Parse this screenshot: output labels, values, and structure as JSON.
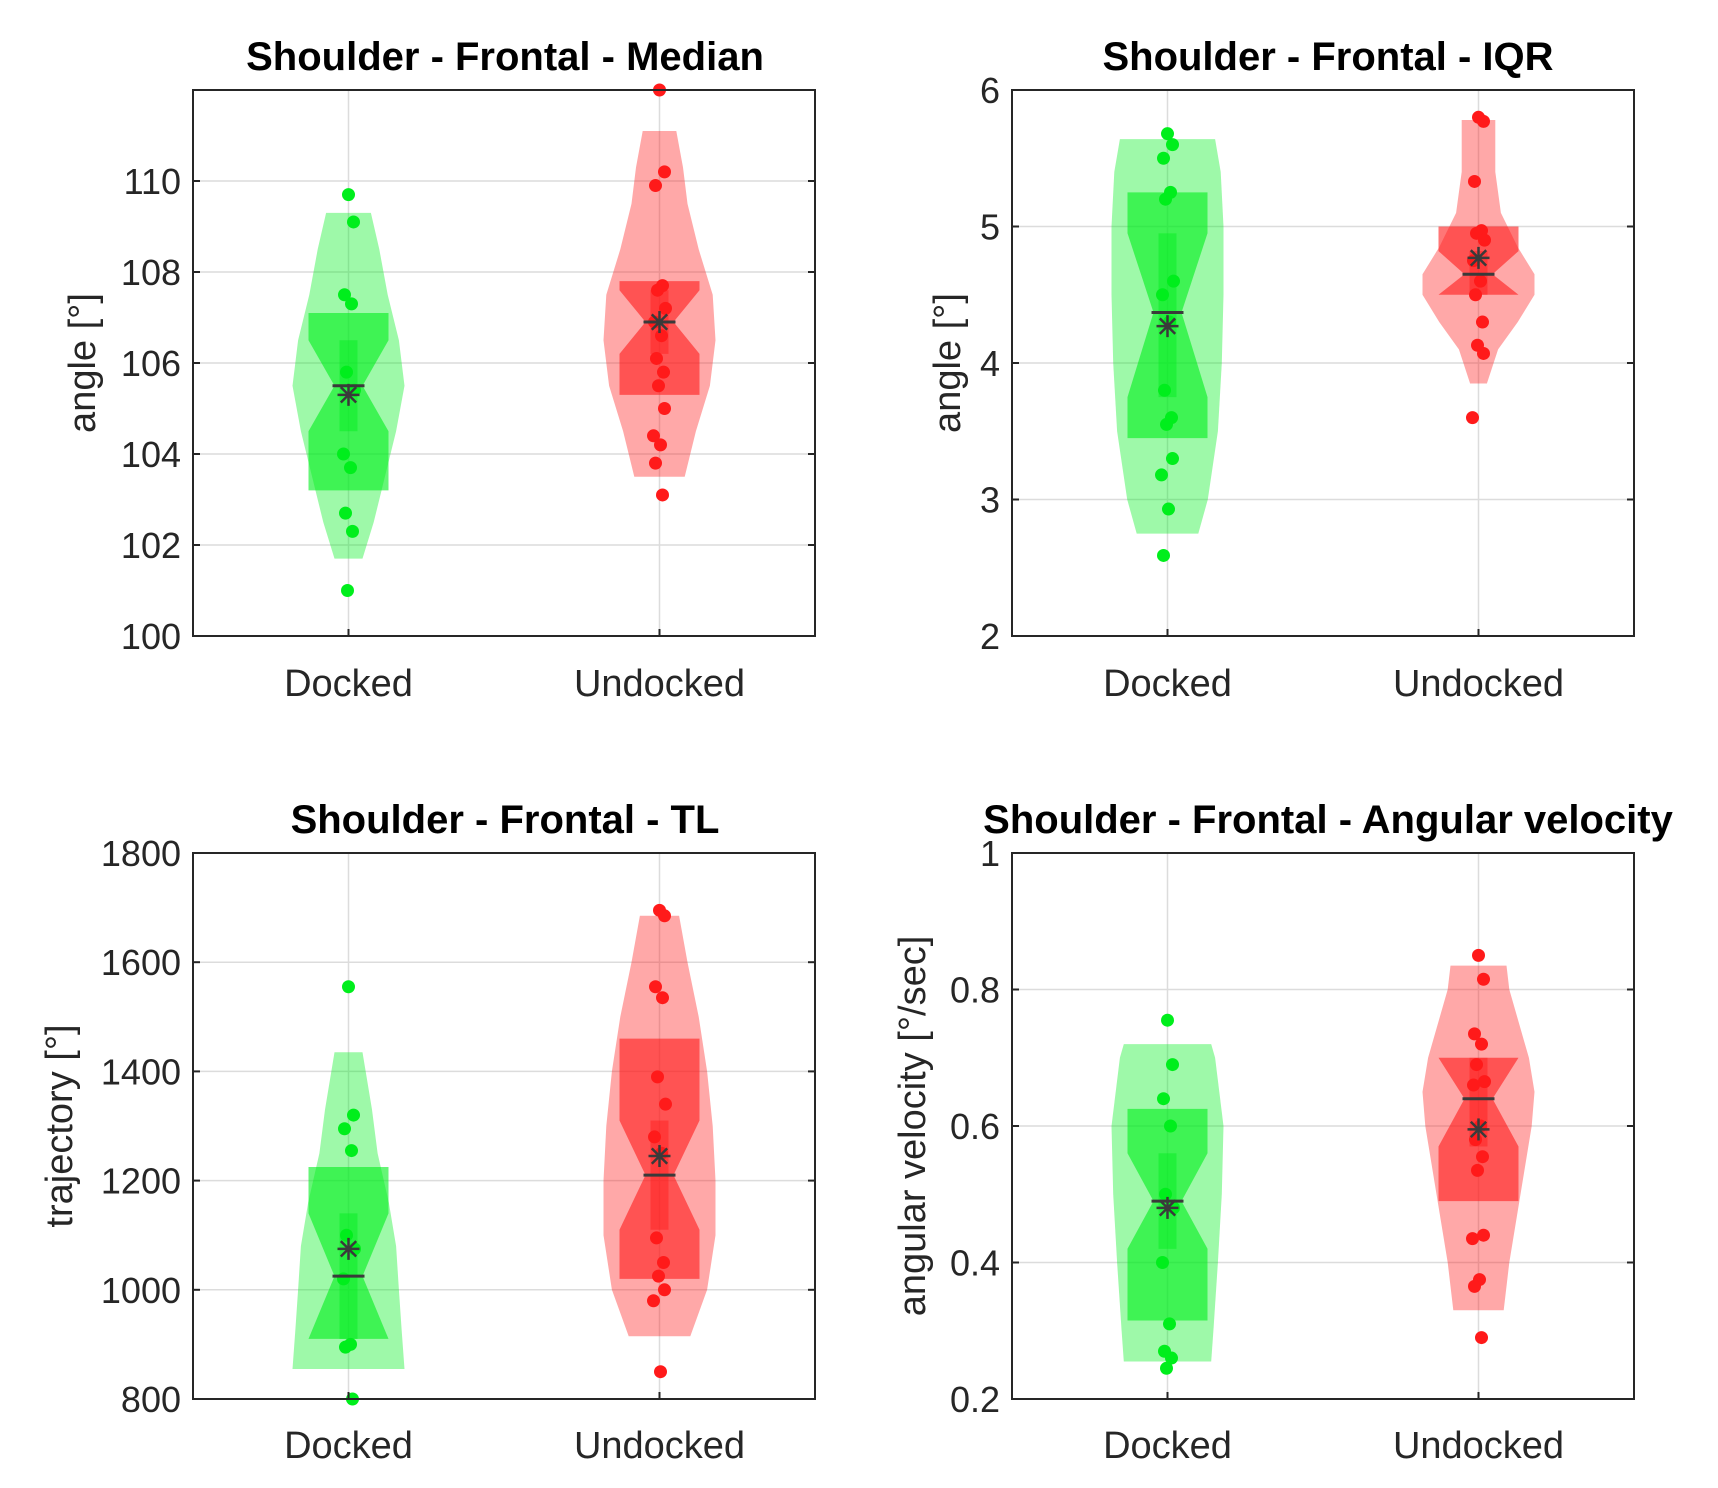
{
  "figure": {
    "colors": {
      "docked": "#00ee1c",
      "undocked": "#ff1a1a",
      "marker": "#3a3a3a"
    }
  },
  "chart_data": [
    {
      "type": "violin",
      "title": "Shoulder - Frontal - Median",
      "xlabel": "",
      "ylabel": "angle [°]",
      "ylim": [
        100,
        112
      ],
      "yticks": [
        100,
        102,
        104,
        106,
        108,
        110
      ],
      "ytick_labels": [
        "100",
        "102",
        "104",
        "106",
        "108",
        "110"
      ],
      "categories": [
        "Docked",
        "Undocked"
      ],
      "series": [
        {
          "name": "Docked",
          "points": [
            109.7,
            109.1,
            107.5,
            107.3,
            105.8,
            105.4,
            104.0,
            103.7,
            102.7,
            102.3,
            101.0
          ],
          "median": 105.5,
          "mean": 105.3,
          "q1": 103.2,
          "q3": 107.1,
          "notch_low": 104.5,
          "notch_high": 106.5,
          "violin": [
            [
              101.7,
              0.25
            ],
            [
              102.5,
              0.45
            ],
            [
              103.5,
              0.65
            ],
            [
              104.5,
              0.85
            ],
            [
              105.5,
              1.0
            ],
            [
              106.5,
              0.9
            ],
            [
              107.5,
              0.7
            ],
            [
              108.5,
              0.55
            ],
            [
              109.3,
              0.4
            ]
          ]
        },
        {
          "name": "Undocked",
          "points": [
            112.0,
            110.2,
            109.9,
            107.7,
            107.6,
            107.2,
            106.9,
            106.6,
            106.1,
            105.8,
            105.5,
            105.0,
            104.4,
            104.2,
            103.8,
            103.1
          ],
          "median": 106.9,
          "mean": 106.9,
          "q1": 105.3,
          "q3": 107.8,
          "notch_low": 106.2,
          "notch_high": 107.6,
          "violin": [
            [
              103.5,
              0.45
            ],
            [
              104.5,
              0.65
            ],
            [
              105.5,
              0.9
            ],
            [
              106.5,
              1.0
            ],
            [
              107.5,
              0.95
            ],
            [
              108.5,
              0.7
            ],
            [
              109.5,
              0.5
            ],
            [
              110.3,
              0.42
            ],
            [
              111.1,
              0.3
            ]
          ]
        }
      ]
    },
    {
      "type": "violin",
      "title": "Shoulder - Frontal - IQR",
      "xlabel": "",
      "ylabel": "angle [°]",
      "ylim": [
        2,
        6
      ],
      "yticks": [
        2,
        3,
        4,
        5,
        6
      ],
      "ytick_labels": [
        "2",
        "3",
        "4",
        "5",
        "6"
      ],
      "categories": [
        "Docked",
        "Undocked"
      ],
      "series": [
        {
          "name": "Docked",
          "points": [
            5.68,
            5.6,
            5.5,
            5.25,
            5.2,
            4.6,
            4.5,
            4.3,
            3.8,
            3.6,
            3.55,
            3.3,
            3.18,
            2.93,
            2.59
          ],
          "median": 4.37,
          "mean": 4.27,
          "q1": 3.45,
          "q3": 5.25,
          "notch_low": 3.75,
          "notch_high": 4.95,
          "violin": [
            [
              2.75,
              0.55
            ],
            [
              3.0,
              0.72
            ],
            [
              3.5,
              0.9
            ],
            [
              4.0,
              0.97
            ],
            [
              4.5,
              1.0
            ],
            [
              5.0,
              1.0
            ],
            [
              5.4,
              0.95
            ],
            [
              5.64,
              0.85
            ]
          ]
        },
        {
          "name": "Undocked",
          "points": [
            5.8,
            5.77,
            5.33,
            4.97,
            4.95,
            4.9,
            4.75,
            4.6,
            4.5,
            4.3,
            4.13,
            4.07,
            3.6
          ],
          "median": 4.65,
          "mean": 4.77,
          "q1": 4.5,
          "q3": 5.0,
          "notch_low": 4.5,
          "notch_high": 4.82,
          "violin": [
            [
              3.85,
              0.15
            ],
            [
              4.1,
              0.35
            ],
            [
              4.3,
              0.7
            ],
            [
              4.5,
              1.0
            ],
            [
              4.65,
              1.0
            ],
            [
              4.85,
              0.7
            ],
            [
              5.1,
              0.4
            ],
            [
              5.4,
              0.3
            ],
            [
              5.6,
              0.3
            ],
            [
              5.78,
              0.3
            ]
          ]
        }
      ]
    },
    {
      "type": "violin",
      "title": "Shoulder - Frontal - TL",
      "xlabel": "",
      "ylabel": "trajectory [°]",
      "ylim": [
        800,
        1800
      ],
      "yticks": [
        800,
        1000,
        1200,
        1400,
        1600,
        1800
      ],
      "ytick_labels": [
        "800",
        "1000",
        "1200",
        "1400",
        "1600",
        "1800"
      ],
      "categories": [
        "Docked",
        "Undocked"
      ],
      "series": [
        {
          "name": "Docked",
          "points": [
            1555,
            1320,
            1295,
            1255,
            1100,
            1075,
            1020,
            900,
            895,
            800
          ],
          "median": 1025,
          "mean": 1075,
          "q1": 910,
          "q3": 1225,
          "notch_low": 910,
          "notch_high": 1140,
          "violin": [
            [
              855,
              1.0
            ],
            [
              925,
              0.95
            ],
            [
              1000,
              0.9
            ],
            [
              1080,
              0.85
            ],
            [
              1160,
              0.72
            ],
            [
              1250,
              0.52
            ],
            [
              1330,
              0.42
            ],
            [
              1435,
              0.25
            ]
          ]
        },
        {
          "name": "Undocked",
          "points": [
            1695,
            1685,
            1555,
            1535,
            1390,
            1340,
            1280,
            1250,
            1095,
            1050,
            1025,
            1000,
            980,
            850
          ],
          "median": 1210,
          "mean": 1245,
          "q1": 1020,
          "q3": 1460,
          "notch_low": 1110,
          "notch_high": 1310,
          "violin": [
            [
              915,
              0.55
            ],
            [
              1000,
              0.85
            ],
            [
              1100,
              1.0
            ],
            [
              1200,
              1.0
            ],
            [
              1300,
              0.95
            ],
            [
              1400,
              0.85
            ],
            [
              1500,
              0.7
            ],
            [
              1600,
              0.5
            ],
            [
              1685,
              0.35
            ]
          ]
        }
      ]
    },
    {
      "type": "violin",
      "title": "Shoulder - Frontal - Angular velocity",
      "xlabel": "",
      "ylabel": "angular velocity [°/sec]",
      "ylim": [
        0.2,
        1.0
      ],
      "yticks": [
        0.2,
        0.4,
        0.6,
        0.8,
        1.0
      ],
      "ytick_labels": [
        "0.2",
        "0.4",
        "0.6",
        "0.8",
        "1"
      ],
      "categories": [
        "Docked",
        "Undocked"
      ],
      "series": [
        {
          "name": "Docked",
          "points": [
            0.755,
            0.69,
            0.64,
            0.6,
            0.5,
            0.48,
            0.4,
            0.31,
            0.27,
            0.26,
            0.245
          ],
          "median": 0.49,
          "mean": 0.48,
          "q1": 0.315,
          "q3": 0.625,
          "notch_low": 0.42,
          "notch_high": 0.56,
          "violin": [
            [
              0.255,
              0.78
            ],
            [
              0.3,
              0.82
            ],
            [
              0.4,
              0.9
            ],
            [
              0.5,
              0.97
            ],
            [
              0.6,
              1.0
            ],
            [
              0.7,
              0.85
            ],
            [
              0.72,
              0.78
            ]
          ]
        },
        {
          "name": "Undocked",
          "points": [
            0.85,
            0.815,
            0.735,
            0.72,
            0.69,
            0.665,
            0.66,
            0.6,
            0.58,
            0.555,
            0.535,
            0.44,
            0.435,
            0.375,
            0.365,
            0.29
          ],
          "median": 0.64,
          "mean": 0.595,
          "q1": 0.49,
          "q3": 0.7,
          "notch_low": 0.57,
          "notch_high": 0.7,
          "violin": [
            [
              0.33,
              0.45
            ],
            [
              0.4,
              0.55
            ],
            [
              0.5,
              0.75
            ],
            [
              0.6,
              0.95
            ],
            [
              0.65,
              1.0
            ],
            [
              0.7,
              0.9
            ],
            [
              0.8,
              0.55
            ],
            [
              0.835,
              0.5
            ]
          ]
        }
      ]
    }
  ]
}
